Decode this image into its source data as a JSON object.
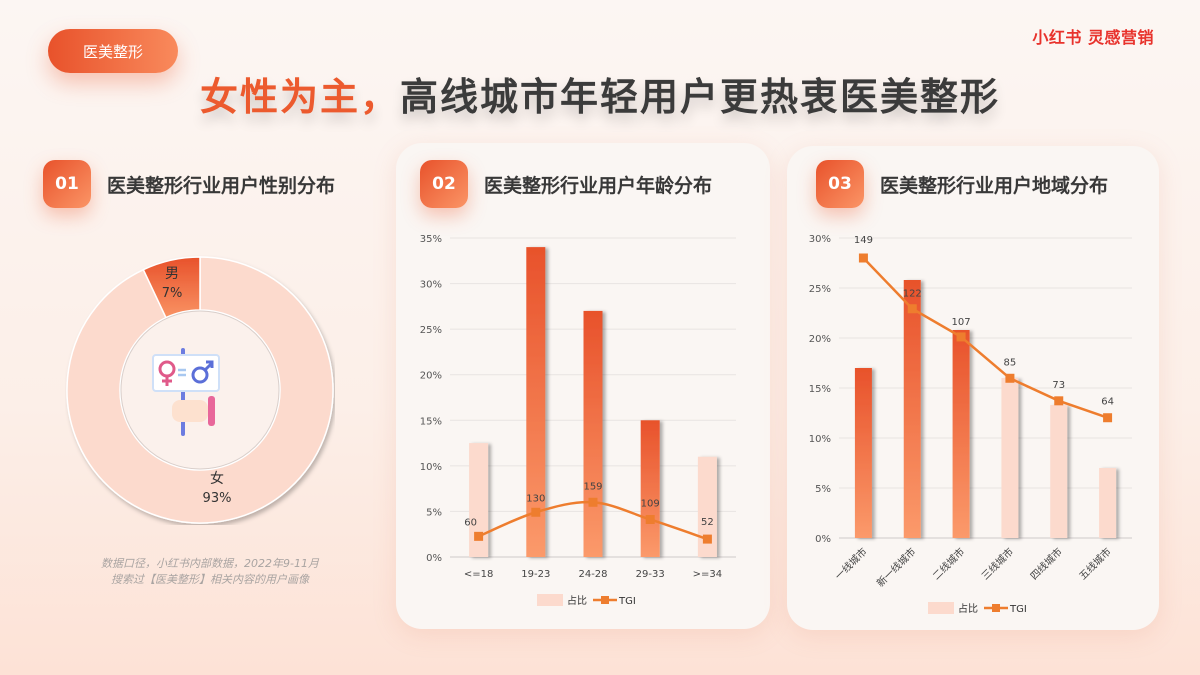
{
  "header": {
    "tag": "医美整形",
    "brand": "小红书 灵感营销",
    "headline_highlight": "女性为主，",
    "headline_rest": "高线城市年轻用户更热衷医美整形"
  },
  "sections": [
    {
      "number": "01",
      "title": "医美整形行业用户性别分布"
    },
    {
      "number": "02",
      "title": "医美整形行业用户年龄分布"
    },
    {
      "number": "03",
      "title": "医美整形行业用户地域分布"
    }
  ],
  "footnote": {
    "line1": "数据口径，小红书内部数据，2022年9-11月",
    "line2": "搜索过【医美整形】相关内容的用户画像"
  },
  "icons": {
    "center": "gender-equality-sign-icon"
  },
  "colors": {
    "accent": "#ec5a2e",
    "bar_dark_top": "#e8522b",
    "bar_dark_bottom": "#fb9a6b",
    "bar_light": "#fcdacd",
    "line": "#ee7d2e",
    "brand": "#e8322c"
  },
  "chart_data": [
    {
      "type": "pie",
      "title": "医美整形行业用户性别分布",
      "categories": [
        "男",
        "女"
      ],
      "values": [
        7,
        93
      ],
      "labels": [
        "7%",
        "93%"
      ],
      "donut": true
    },
    {
      "type": "bar",
      "title": "医美整形行业用户年龄分布",
      "categories": [
        "<=18",
        "19-23",
        "24-28",
        "29-33",
        ">=34"
      ],
      "series": [
        {
          "name": "占比",
          "type": "bar",
          "values": [
            12.5,
            34,
            27,
            15,
            11
          ]
        },
        {
          "name": "TGI",
          "type": "line",
          "values": [
            60,
            130,
            159,
            109,
            52
          ],
          "labels": [
            "60",
            "130",
            "159",
            "109",
            "52"
          ]
        }
      ],
      "highlighted": [
        false,
        true,
        true,
        true,
        false
      ],
      "yticks": [
        "0%",
        "5%",
        "10%",
        "15%",
        "20%",
        "25%",
        "30%",
        "35%"
      ],
      "ylim": [
        0,
        35
      ],
      "legend": [
        "占比",
        "TGI"
      ],
      "legend_position": "bottom",
      "grid": true
    },
    {
      "type": "bar",
      "title": "医美整形行业用户地域分布",
      "categories": [
        "一线城市",
        "新一线城市",
        "二线城市",
        "三线城市",
        "四线城市",
        "五线城市"
      ],
      "series": [
        {
          "name": "占比",
          "type": "bar",
          "values": [
            17,
            25.8,
            20.8,
            16,
            13.3,
            7
          ]
        },
        {
          "name": "TGI",
          "type": "line",
          "values": [
            149,
            122,
            107,
            85,
            73,
            64
          ],
          "labels": [
            "149",
            "122",
            "107",
            "85",
            "73",
            "64"
          ]
        }
      ],
      "highlighted": [
        true,
        true,
        true,
        false,
        false,
        false
      ],
      "yticks": [
        "0%",
        "5%",
        "10%",
        "15%",
        "20%",
        "25%",
        "30%"
      ],
      "ylim": [
        0,
        30
      ],
      "legend": [
        "占比",
        "TGI"
      ],
      "legend_position": "bottom",
      "grid": true
    }
  ]
}
